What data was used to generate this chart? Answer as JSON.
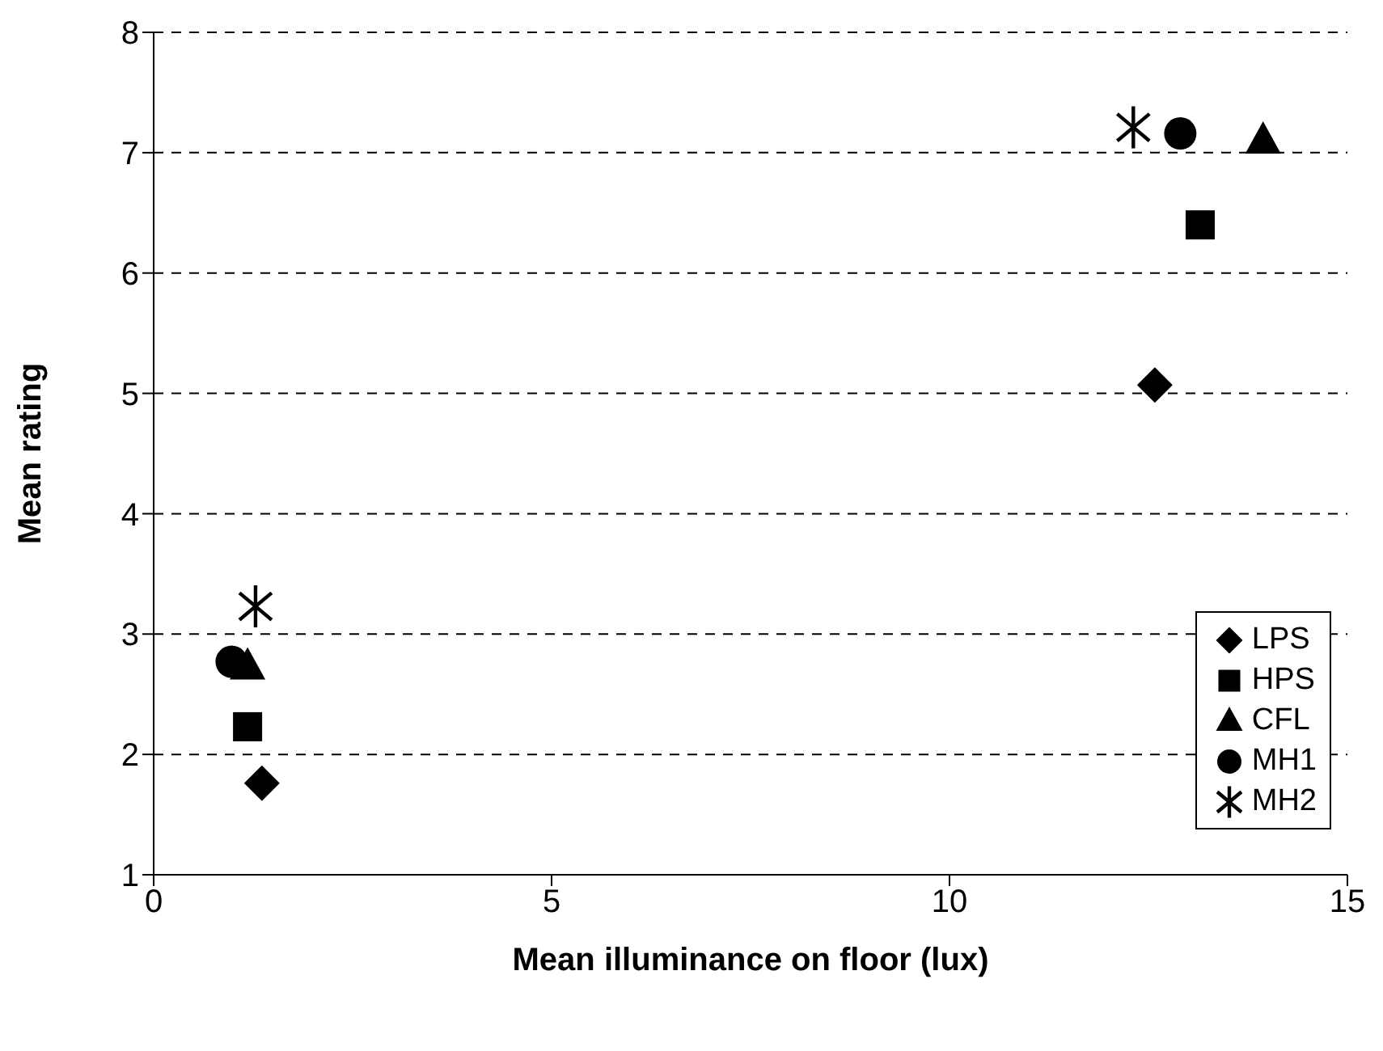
{
  "chart_data": {
    "type": "scatter",
    "xlabel": "Mean illuminance on floor (lux)",
    "ylabel": "Mean rating",
    "xlim": [
      0,
      15
    ],
    "xticks": [
      0,
      5,
      10,
      15
    ],
    "ylim": [
      1,
      8
    ],
    "yticks": [
      1,
      2,
      3,
      4,
      5,
      6,
      7,
      8
    ],
    "grid": "y",
    "legend": "bottom right",
    "series": [
      {
        "name": "LPS",
        "color": "#000000",
        "marker": "diamond",
        "x": [
          1.36,
          12.58
        ],
        "values": [
          1.76,
          5.07
        ]
      },
      {
        "name": "HPS",
        "color": "#000000",
        "marker": "square",
        "x": [
          1.18,
          13.15
        ],
        "values": [
          2.23,
          6.4
        ]
      },
      {
        "name": "CFL",
        "color": "#000000",
        "marker": "triangle",
        "x": [
          1.18,
          13.94
        ],
        "values": [
          2.73,
          7.1
        ]
      },
      {
        "name": "MH1",
        "color": "#000000",
        "marker": "circle",
        "x": [
          0.98,
          12.9
        ],
        "values": [
          2.77,
          7.16
        ]
      },
      {
        "name": "MH2",
        "color": "#000000",
        "marker": "star",
        "x": [
          1.28,
          12.31
        ],
        "values": [
          3.23,
          7.21
        ]
      }
    ]
  }
}
